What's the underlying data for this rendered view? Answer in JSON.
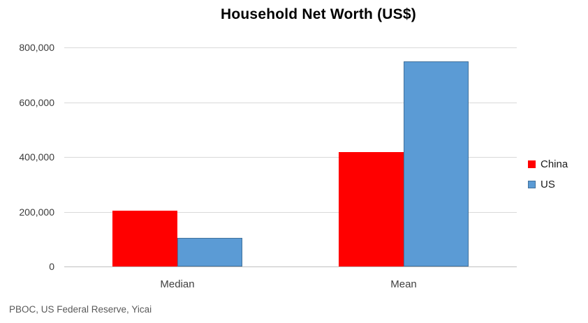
{
  "chart_data": {
    "type": "bar",
    "title": "Household Net Worth (US$)",
    "categories": [
      "Median",
      "Mean"
    ],
    "series": [
      {
        "name": "China",
        "color": "#ff0000",
        "border_color": "#ff0000",
        "values": [
          204000,
          417000
        ]
      },
      {
        "name": "US",
        "color": "#5b9bd5",
        "border_color": "#41719c",
        "values": [
          104000,
          748000
        ]
      }
    ],
    "ylim": [
      0,
      800000
    ],
    "ytick_values": [
      0,
      200000,
      400000,
      600000,
      800000
    ],
    "ytick_labels": [
      "0",
      "200,000",
      "400,000",
      "600,000",
      "800,000"
    ],
    "grid": "horizontal-only",
    "gridline_color": "#d9d9d9",
    "axis_line_color": "#bfbfbf",
    "legend_position": "right",
    "xlabel": "",
    "ylabel": ""
  },
  "source_note": "PBOC, US Federal Reserve,  Yicai"
}
